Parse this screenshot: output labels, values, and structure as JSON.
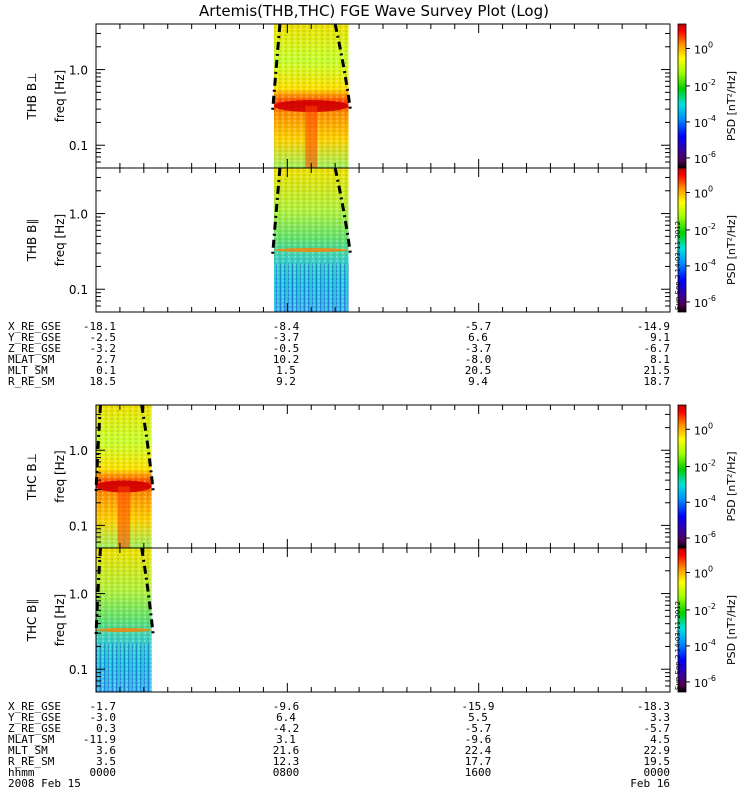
{
  "chart_data": {
    "type": "heatmap",
    "title": "Artemis(THB,THC) FGE Wave Survey Plot (Log)",
    "panels": [
      {
        "probe": "THB",
        "label": "THB B⊥",
        "ylabel": "freq [Hz]",
        "ylim": [
          0.05,
          4.0
        ],
        "yscale": "log",
        "yticks": [
          "1.0",
          "0.1"
        ],
        "active_x": [
          0.31,
          0.44
        ],
        "peak_freq": 0.33,
        "band_freq": [
          0.09,
          3.0
        ]
      },
      {
        "probe": "THB",
        "label": "THB B∥",
        "ylabel": "freq [Hz]",
        "ylim": [
          0.05,
          4.0
        ],
        "yscale": "log",
        "yticks": [
          "1.0",
          "0.1"
        ],
        "active_x": [
          0.31,
          0.44
        ],
        "peak_freq": 0.33,
        "band_freq": [
          0.09,
          3.0
        ]
      },
      {
        "probe": "THC",
        "label": "THC B⊥",
        "ylabel": "freq [Hz]",
        "ylim": [
          0.05,
          4.0
        ],
        "yscale": "log",
        "yticks": [
          "1.0",
          "0.1"
        ],
        "active_x": [
          0.0,
          0.097
        ],
        "peak_freq": 0.33,
        "band_freq": [
          0.09,
          3.0
        ]
      },
      {
        "probe": "THC",
        "label": "THC B∥",
        "ylabel": "freq [Hz]",
        "ylim": [
          0.05,
          4.0
        ],
        "yscale": "log",
        "yticks": [
          "1.0",
          "0.1"
        ],
        "active_x": [
          0.0,
          0.097
        ],
        "peak_freq": 0.33,
        "band_freq": [
          0.09,
          3.0
        ]
      }
    ],
    "colorbar": {
      "label": "PSD [nT²/Hz]",
      "scale": "log",
      "ticks": [
        {
          "label": "10",
          "exp": "0"
        },
        {
          "label": "10",
          "exp": "-2"
        },
        {
          "label": "10",
          "exp": "-4"
        },
        {
          "label": "10",
          "exp": "-6"
        }
      ]
    },
    "stamp": "Sun Sep  2 14:03:11 2012",
    "ephemeris": {
      "thb": {
        "rows": [
          {
            "name": "X_RE_GSE",
            "values": [
              "-18.1",
              "-8.4",
              "-5.7",
              "-14.9"
            ]
          },
          {
            "name": "Y_RE_GSE",
            "values": [
              "-2.5",
              "-3.7",
              "6.6",
              "9.1"
            ]
          },
          {
            "name": "Z_RE_GSE",
            "values": [
              "-3.2",
              "-0.5",
              "-3.7",
              "-6.7"
            ]
          },
          {
            "name": "MLAT_SM",
            "values": [
              "2.7",
              "10.2",
              "-8.0",
              "8.1"
            ]
          },
          {
            "name": "MLT_SM",
            "values": [
              "0.1",
              "1.5",
              "20.5",
              "21.5"
            ]
          },
          {
            "name": "R_RE_SM",
            "values": [
              "18.5",
              "9.2",
              "9.4",
              "18.7"
            ]
          }
        ]
      },
      "thc": {
        "rows": [
          {
            "name": "X_RE_GSE",
            "values": [
              "-1.7",
              "-9.6",
              "-15.9",
              "-18.3"
            ]
          },
          {
            "name": "Y_RE_GSE",
            "values": [
              "-3.0",
              "6.4",
              "5.5",
              "3.3"
            ]
          },
          {
            "name": "Z_RE_GSE",
            "values": [
              "0.3",
              "-4.2",
              "-5.7",
              "-5.7"
            ]
          },
          {
            "name": "MLAT_SM",
            "values": [
              "-11.9",
              "3.1",
              "-9.6",
              "4.5"
            ]
          },
          {
            "name": "MLT_SM",
            "values": [
              "3.6",
              "21.6",
              "22.4",
              "22.9"
            ]
          },
          {
            "name": "R_RE_SM",
            "values": [
              "3.5",
              "12.3",
              "17.7",
              "19.5"
            ]
          }
        ],
        "hhmm": {
          "name": "hhmm",
          "values": [
            "0000",
            "0800",
            "1600",
            "0000"
          ]
        }
      },
      "date_start": "2008     Feb 15",
      "date_end": "Feb 16"
    }
  }
}
